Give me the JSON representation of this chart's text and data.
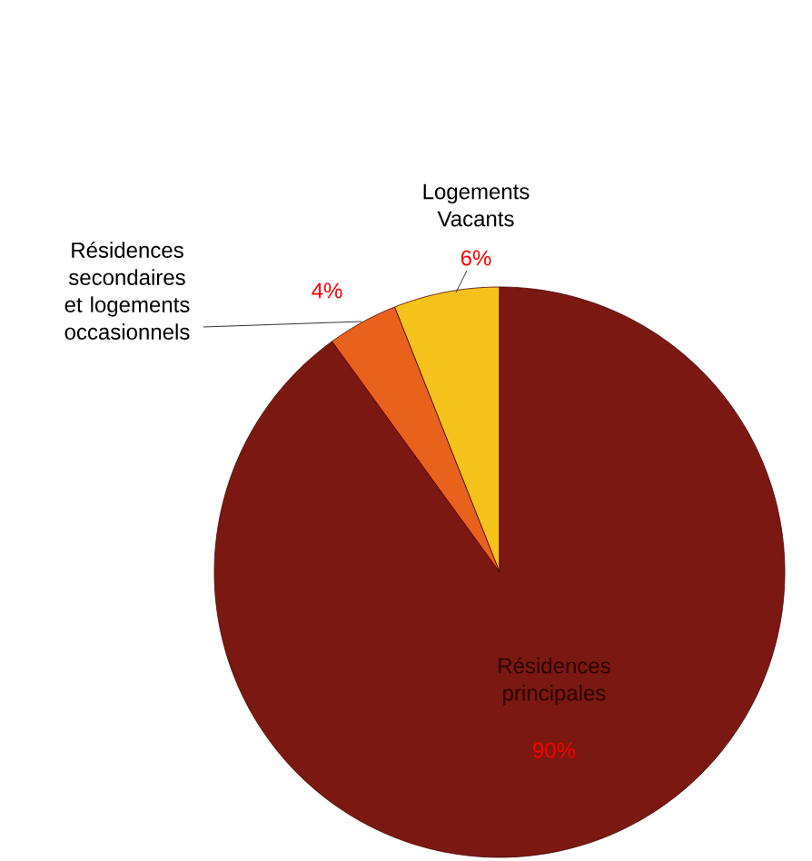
{
  "chart_data": {
    "type": "pie",
    "categories": [
      "Logements Vacants",
      "Résidences secondaires et logements occasionnels",
      "Résidences principales"
    ],
    "values": [
      6,
      4,
      90
    ],
    "value_labels": [
      "6%",
      "4%",
      "90%"
    ],
    "colors": [
      "#f5c21b",
      "#e8621c",
      "#7b1812"
    ]
  }
}
